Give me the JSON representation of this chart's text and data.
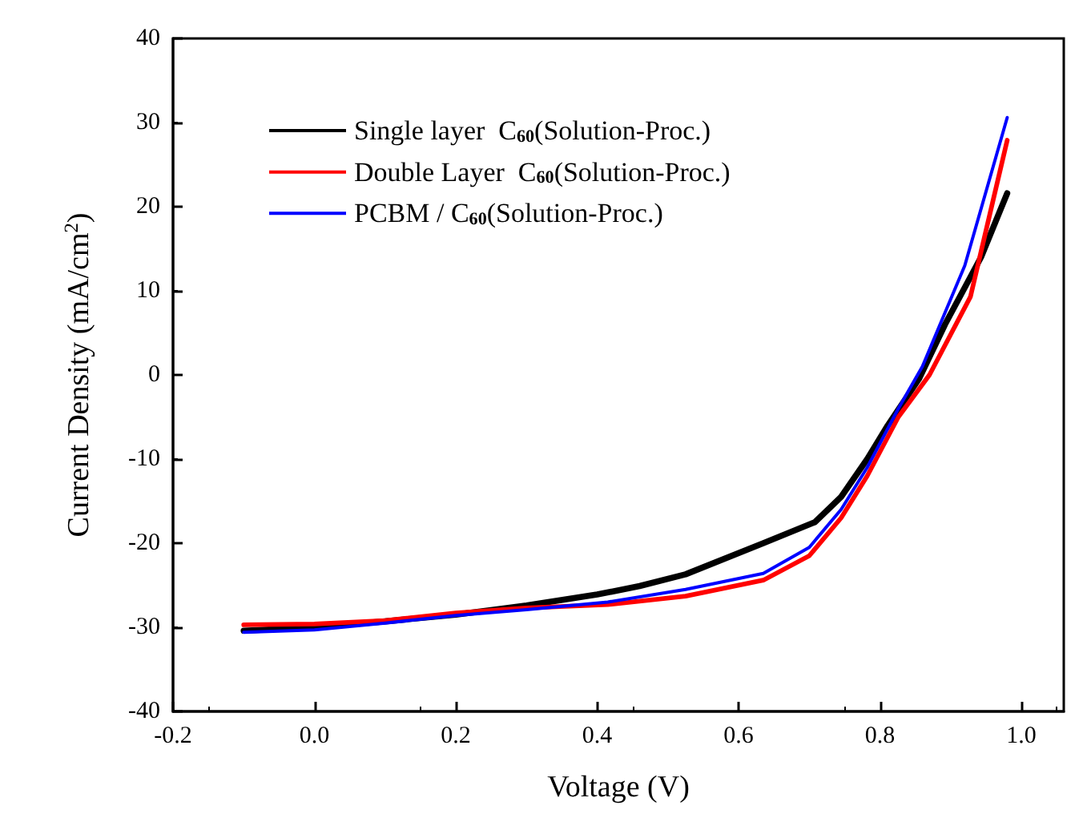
{
  "chart_data": {
    "type": "line",
    "xlabel": "Voltage (V)",
    "ylabel": "Current Density (mA/cm$^{2}$)",
    "xlim": [
      -0.2,
      1.06
    ],
    "ylim": [
      -40,
      40
    ],
    "xticks": [
      {
        "value": -0.2,
        "label": "-0.2"
      },
      {
        "value": 0,
        "label": "0.0"
      },
      {
        "value": 0.2,
        "label": "0.2"
      },
      {
        "value": 0.4,
        "label": "0.4"
      },
      {
        "value": 0.6,
        "label": "0.6"
      },
      {
        "value": 0.8,
        "label": "0.8"
      },
      {
        "value": 1,
        "label": "1.0"
      }
    ],
    "yticks": [
      -40,
      -30,
      -20,
      -10,
      0,
      10,
      20,
      30,
      40
    ],
    "grid": false,
    "legend": "top left",
    "marker": "none",
    "line_style": "solid",
    "series": [
      {
        "name": "Single layer  C$_{60}$(Solution-Proc.)",
        "color": "#000000",
        "x": [
          -0.1,
          0,
          0.1,
          0.2,
          0.3,
          0.4,
          0.46,
          0.525,
          0.635,
          0.708,
          0.745,
          0.782,
          0.811,
          0.855,
          0.892,
          0.943,
          0.98
        ],
        "values": [
          -30.4,
          -30.0,
          -29.3,
          -28.5,
          -27.4,
          -26.1,
          -25.1,
          -23.7,
          -20.0,
          -17.5,
          -14.5,
          -10.0,
          -6.0,
          -0.5,
          6.0,
          14.0,
          21.6
        ]
      },
      {
        "name": "Double Layer  C$_{60}$(Solution-Proc.)",
        "color": "#ff0000",
        "x": [
          -0.1,
          0,
          0.1,
          0.2,
          0.3,
          0.415,
          0.525,
          0.635,
          0.7,
          0.745,
          0.782,
          0.826,
          0.87,
          0.928,
          0.98
        ],
        "values": [
          -29.7,
          -29.6,
          -29.2,
          -28.3,
          -27.7,
          -27.3,
          -26.3,
          -24.4,
          -21.5,
          -17.0,
          -12.0,
          -5.0,
          0.0,
          9.3,
          27.9
        ]
      },
      {
        "name": "PCBM / C$_{60}$(Solution-Proc.)",
        "color": "#0000ff",
        "x": [
          -0.1,
          0,
          0.1,
          0.2,
          0.3,
          0.415,
          0.525,
          0.635,
          0.7,
          0.745,
          0.782,
          0.826,
          0.86,
          0.92,
          0.98
        ],
        "values": [
          -30.6,
          -30.3,
          -29.5,
          -28.6,
          -27.9,
          -27.0,
          -25.5,
          -23.6,
          -20.5,
          -16.0,
          -11.0,
          -4.0,
          1.0,
          13.0,
          30.6
        ]
      }
    ]
  }
}
